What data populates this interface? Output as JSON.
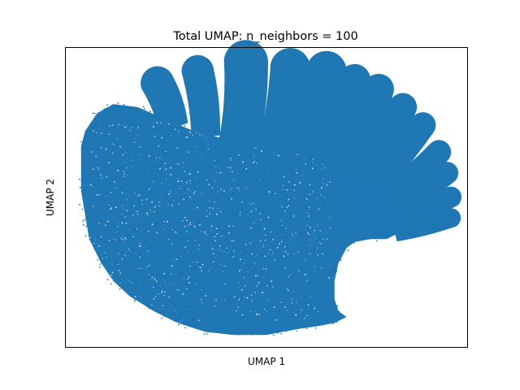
{
  "chart_data": {
    "type": "scatter",
    "title": "Total UMAP: n_neighbors = 100",
    "xlabel": "UMAP 1",
    "ylabel": "UMAP 2",
    "xticks": [],
    "yticks": [],
    "grid": false,
    "legend": "none",
    "xlim": [
      0,
      100
    ],
    "ylim": [
      0,
      100
    ],
    "series": [
      {
        "color": "#1f77b4",
        "marker_size": 1,
        "note_regions": "main-body,fingers,notch"
      }
    ],
    "regions": {
      "main": {
        "outline": [
          [
            5,
            72
          ],
          [
            8,
            78
          ],
          [
            12,
            81
          ],
          [
            18,
            80
          ],
          [
            25,
            76
          ],
          [
            32,
            72
          ],
          [
            38,
            70
          ],
          [
            45,
            67
          ],
          [
            52,
            65
          ],
          [
            60,
            64
          ],
          [
            66,
            61
          ],
          [
            70,
            60
          ],
          [
            74,
            56
          ],
          [
            78,
            50
          ],
          [
            81,
            46
          ],
          [
            83,
            42
          ],
          [
            83,
            38
          ],
          [
            80,
            36
          ],
          [
            76,
            36
          ],
          [
            72,
            35
          ],
          [
            70,
            33
          ],
          [
            68,
            28
          ],
          [
            67,
            22
          ],
          [
            67,
            16
          ],
          [
            68,
            12
          ],
          [
            70,
            10
          ],
          [
            67,
            8
          ],
          [
            63,
            7
          ],
          [
            58,
            6
          ],
          [
            50,
            4
          ],
          [
            42,
            4
          ],
          [
            35,
            5
          ],
          [
            28,
            8
          ],
          [
            22,
            12
          ],
          [
            16,
            17
          ],
          [
            12,
            22
          ],
          [
            9,
            28
          ],
          [
            6,
            36
          ],
          [
            5,
            44
          ],
          [
            4,
            52
          ],
          [
            4,
            60
          ],
          [
            4,
            67
          ]
        ],
        "points": 5200
      },
      "fingers": [
        {
          "base": [
            27,
            73
          ],
          "tip": [
            23,
            88
          ],
          "width": 4.2
        },
        {
          "base": [
            35,
            70
          ],
          "tip": [
            33,
            92
          ],
          "width": 4.0
        },
        {
          "base": [
            43,
            67
          ],
          "tip": [
            45,
            95
          ],
          "width": 5.5
        },
        {
          "base": [
            52,
            65
          ],
          "tip": [
            56,
            93
          ],
          "width": 5.0
        },
        {
          "base": [
            60,
            63
          ],
          "tip": [
            65,
            92
          ],
          "width": 5.0
        },
        {
          "base": [
            66,
            60
          ],
          "tip": [
            72,
            89
          ],
          "width": 4.0
        },
        {
          "base": [
            70,
            58
          ],
          "tip": [
            78,
            86
          ],
          "width": 3.8
        },
        {
          "base": [
            73,
            55
          ],
          "tip": [
            84,
            80
          ],
          "width": 3.5
        },
        {
          "base": [
            76,
            52
          ],
          "tip": [
            89,
            74
          ],
          "width": 3.2
        },
        {
          "base": [
            78,
            48
          ],
          "tip": [
            93,
            65
          ],
          "width": 3.0
        },
        {
          "base": [
            80,
            44
          ],
          "tip": [
            95,
            58
          ],
          "width": 2.8
        },
        {
          "base": [
            81,
            41
          ],
          "tip": [
            96,
            50
          ],
          "width": 2.6
        },
        {
          "base": [
            82,
            38
          ],
          "tip": [
            96,
            43
          ],
          "width": 2.4
        }
      ],
      "finger_points": 420
    }
  }
}
